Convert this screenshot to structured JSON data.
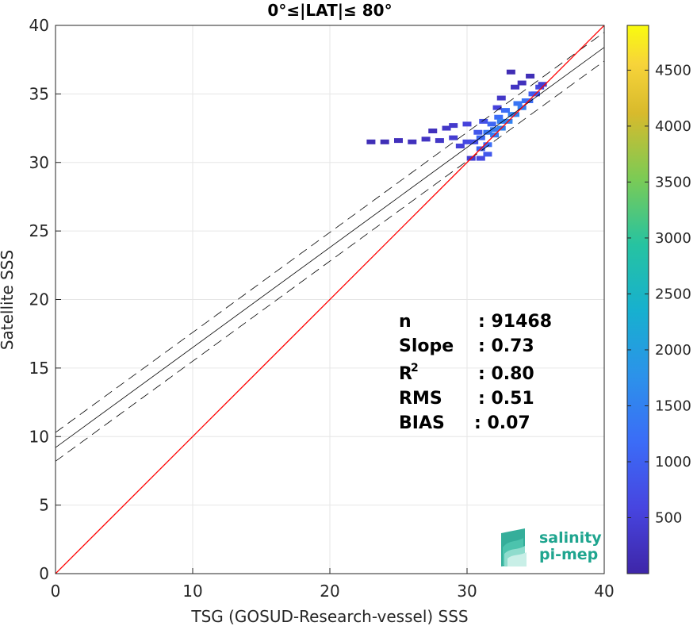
{
  "chart_data": {
    "type": "heatmap",
    "title": "0°≤|LAT|≤ 80°",
    "xlabel": "TSG (GOSUD-Research-vessel) SSS",
    "ylabel": "Satellite SSS",
    "xlim": [
      0,
      40
    ],
    "ylim": [
      0,
      40
    ],
    "xticks": [
      "0",
      "10",
      "20",
      "30",
      "40"
    ],
    "yticks": [
      "0",
      "5",
      "10",
      "15",
      "20",
      "25",
      "30",
      "35",
      "40"
    ],
    "grid": true,
    "colorbar": {
      "min": 0,
      "max": 4900,
      "ticks": [
        "500",
        "1000",
        "1500",
        "2000",
        "2500",
        "3000",
        "3500",
        "4000",
        "4500"
      ],
      "tick_values": [
        500,
        1000,
        1500,
        2000,
        2500,
        3000,
        3500,
        4000,
        4500
      ],
      "colormap": "parula"
    },
    "lines": {
      "identity": {
        "slope": 1,
        "intercept": 0,
        "color": "#ff0000"
      },
      "regression": {
        "slope": 0.73,
        "intercept": 9.2,
        "color": "#000000"
      },
      "upper_bound": {
        "slope": 0.73,
        "intercept": 10.3,
        "color": "#000000",
        "style": "dashed"
      },
      "lower_bound": {
        "slope": 0.73,
        "intercept": 8.2,
        "color": "#000000",
        "style": "dashed"
      }
    },
    "density_points": [
      [
        23,
        31.5,
        150
      ],
      [
        24,
        31.5,
        150
      ],
      [
        25,
        31.6,
        180
      ],
      [
        26,
        31.5,
        200
      ],
      [
        27,
        31.7,
        250
      ],
      [
        27.5,
        32.3,
        200
      ],
      [
        28,
        31.6,
        300
      ],
      [
        28.5,
        32.5,
        300
      ],
      [
        29,
        31.8,
        400
      ],
      [
        29,
        32.7,
        350
      ],
      [
        29.5,
        31.2,
        450
      ],
      [
        30,
        31.5,
        600
      ],
      [
        30,
        32.8,
        500
      ],
      [
        30.3,
        30.3,
        400
      ],
      [
        30.5,
        31.5,
        700
      ],
      [
        30.8,
        32.2,
        800
      ],
      [
        31,
        31,
        900
      ],
      [
        31,
        31.8,
        1000
      ],
      [
        31.2,
        33,
        700
      ],
      [
        31.5,
        31.3,
        1100
      ],
      [
        31.5,
        32.2,
        1200
      ],
      [
        31.8,
        32.8,
        1000
      ],
      [
        32,
        32,
        1300
      ],
      [
        32,
        32.4,
        1300
      ],
      [
        32.3,
        33.3,
        1100
      ],
      [
        32.5,
        32.5,
        1400
      ],
      [
        32.5,
        33,
        1350
      ],
      [
        32.8,
        33.8,
        1100
      ],
      [
        33,
        33,
        1400
      ],
      [
        33.3,
        33.5,
        1350
      ],
      [
        33.5,
        33.5,
        1400
      ],
      [
        33.7,
        34.3,
        1200
      ],
      [
        34,
        34,
        1350
      ],
      [
        34.3,
        34.5,
        1200
      ],
      [
        34.5,
        34.5,
        1100
      ],
      [
        34.8,
        35,
        900
      ],
      [
        35,
        35,
        800
      ],
      [
        35.3,
        35.5,
        600
      ],
      [
        35.5,
        35.7,
        400
      ],
      [
        32.5,
        34.7,
        300
      ],
      [
        33.5,
        35.5,
        250
      ],
      [
        34,
        35.8,
        200
      ],
      [
        32.2,
        34,
        500
      ],
      [
        34.6,
        36.3,
        150
      ],
      [
        33.2,
        36.6,
        120
      ],
      [
        31,
        30.3,
        600
      ],
      [
        31.5,
        30.6,
        800
      ]
    ],
    "stats": [
      {
        "label": "n",
        "value": ": 91468"
      },
      {
        "label": "Slope",
        "value": ": 0.73"
      },
      {
        "label": "R",
        "sup": "2",
        "value": ": 0.80"
      },
      {
        "label": "RMS",
        "value": ": 0.51"
      },
      {
        "label": "BIAS",
        "value": ": 0.07"
      }
    ]
  },
  "logo": {
    "line1": "salinity",
    "line2": "pi-mep"
  }
}
